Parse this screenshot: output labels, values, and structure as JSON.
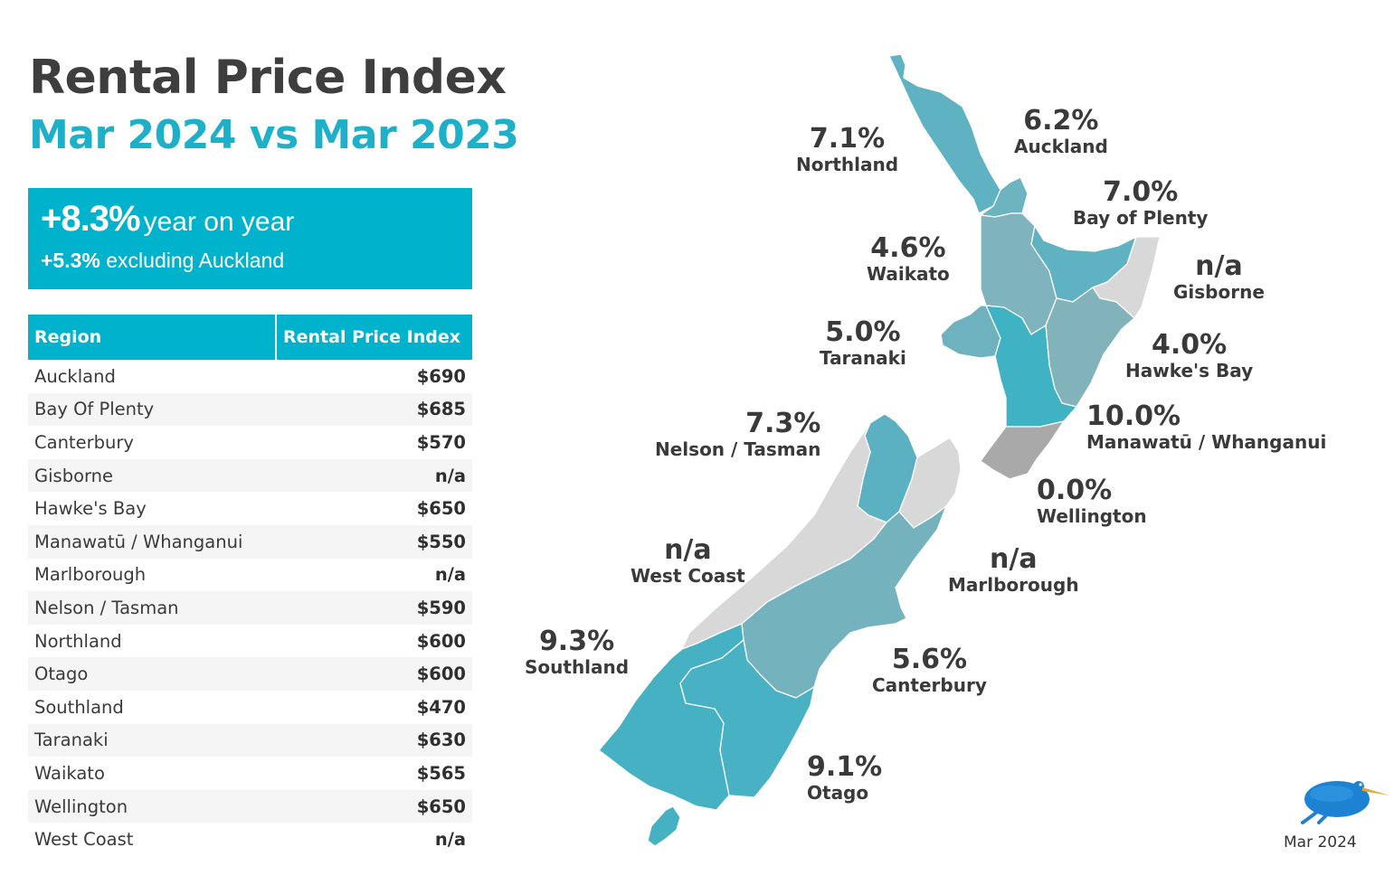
{
  "header": {
    "title": "Rental Price Index",
    "subtitle": "Mar 2024 vs Mar 2023"
  },
  "highlight": {
    "main_value": "+8.3%",
    "main_text": "year on year",
    "sub_value": "+5.3%",
    "sub_text": "excluding Auckland"
  },
  "table": {
    "headers": [
      "Region",
      "Rental Price Index"
    ],
    "rows": [
      [
        "Auckland",
        "$690"
      ],
      [
        "Bay Of Plenty",
        "$685"
      ],
      [
        "Canterbury",
        "$570"
      ],
      [
        "Gisborne",
        "n/a"
      ],
      [
        "Hawke's Bay",
        "$650"
      ],
      [
        "Manawatū / Whanganui",
        "$550"
      ],
      [
        "Marlborough",
        "n/a"
      ],
      [
        "Nelson / Tasman",
        "$590"
      ],
      [
        "Northland",
        "$600"
      ],
      [
        "Otago",
        "$600"
      ],
      [
        "Southland",
        "$470"
      ],
      [
        "Taranaki",
        "$630"
      ],
      [
        "Waikato",
        "$565"
      ],
      [
        "Wellington",
        "$650"
      ],
      [
        "West Coast",
        "n/a"
      ]
    ]
  },
  "map": {
    "regions": [
      {
        "id": "northland",
        "name": "Northland",
        "change": "7.1%",
        "color": "#5fb2c2"
      },
      {
        "id": "auckland",
        "name": "Auckland",
        "change": "6.2%",
        "color": "#6bb4c0"
      },
      {
        "id": "bay-of-plenty",
        "name": "Bay of Plenty",
        "change": "7.0%",
        "color": "#5fb2c2"
      },
      {
        "id": "waikato",
        "name": "Waikato",
        "change": "4.6%",
        "color": "#7fb3bd"
      },
      {
        "id": "gisborne",
        "name": "Gisborne",
        "change": "n/a",
        "color": "#d8d8d8"
      },
      {
        "id": "taranaki",
        "name": "Taranaki",
        "change": "5.0%",
        "color": "#6eb2bf"
      },
      {
        "id": "hawkes-bay",
        "name": "Hawke's Bay",
        "change": "4.0%",
        "color": "#82b3bb"
      },
      {
        "id": "manawatu-whanganui",
        "name": "Manawatū / Whanganui",
        "change": "10.0%",
        "color": "#3fb2c4"
      },
      {
        "id": "wellington",
        "name": "Wellington",
        "change": "0.0%",
        "color": "#a9a9a9"
      },
      {
        "id": "nelson-tasman",
        "name": "Nelson / Tasman",
        "change": "7.3%",
        "color": "#5bb1c1"
      },
      {
        "id": "west-coast",
        "name": "West Coast",
        "change": "n/a",
        "color": "#d8d8d8"
      },
      {
        "id": "marlborough",
        "name": "Marlborough",
        "change": "n/a",
        "color": "#d8d8d8"
      },
      {
        "id": "canterbury",
        "name": "Canterbury",
        "change": "5.6%",
        "color": "#74b3bd"
      },
      {
        "id": "southland",
        "name": "Southland",
        "change": "9.3%",
        "color": "#46b1c3"
      },
      {
        "id": "otago",
        "name": "Otago",
        "change": "9.1%",
        "color": "#48b1c3"
      }
    ]
  },
  "footer": {
    "date": "Mar 2024",
    "logo_icon": "kiwi-bird-icon"
  },
  "colors": {
    "accent": "#00b2cb",
    "title": "#3e3e3e",
    "subtitle": "#1fb0c9"
  }
}
